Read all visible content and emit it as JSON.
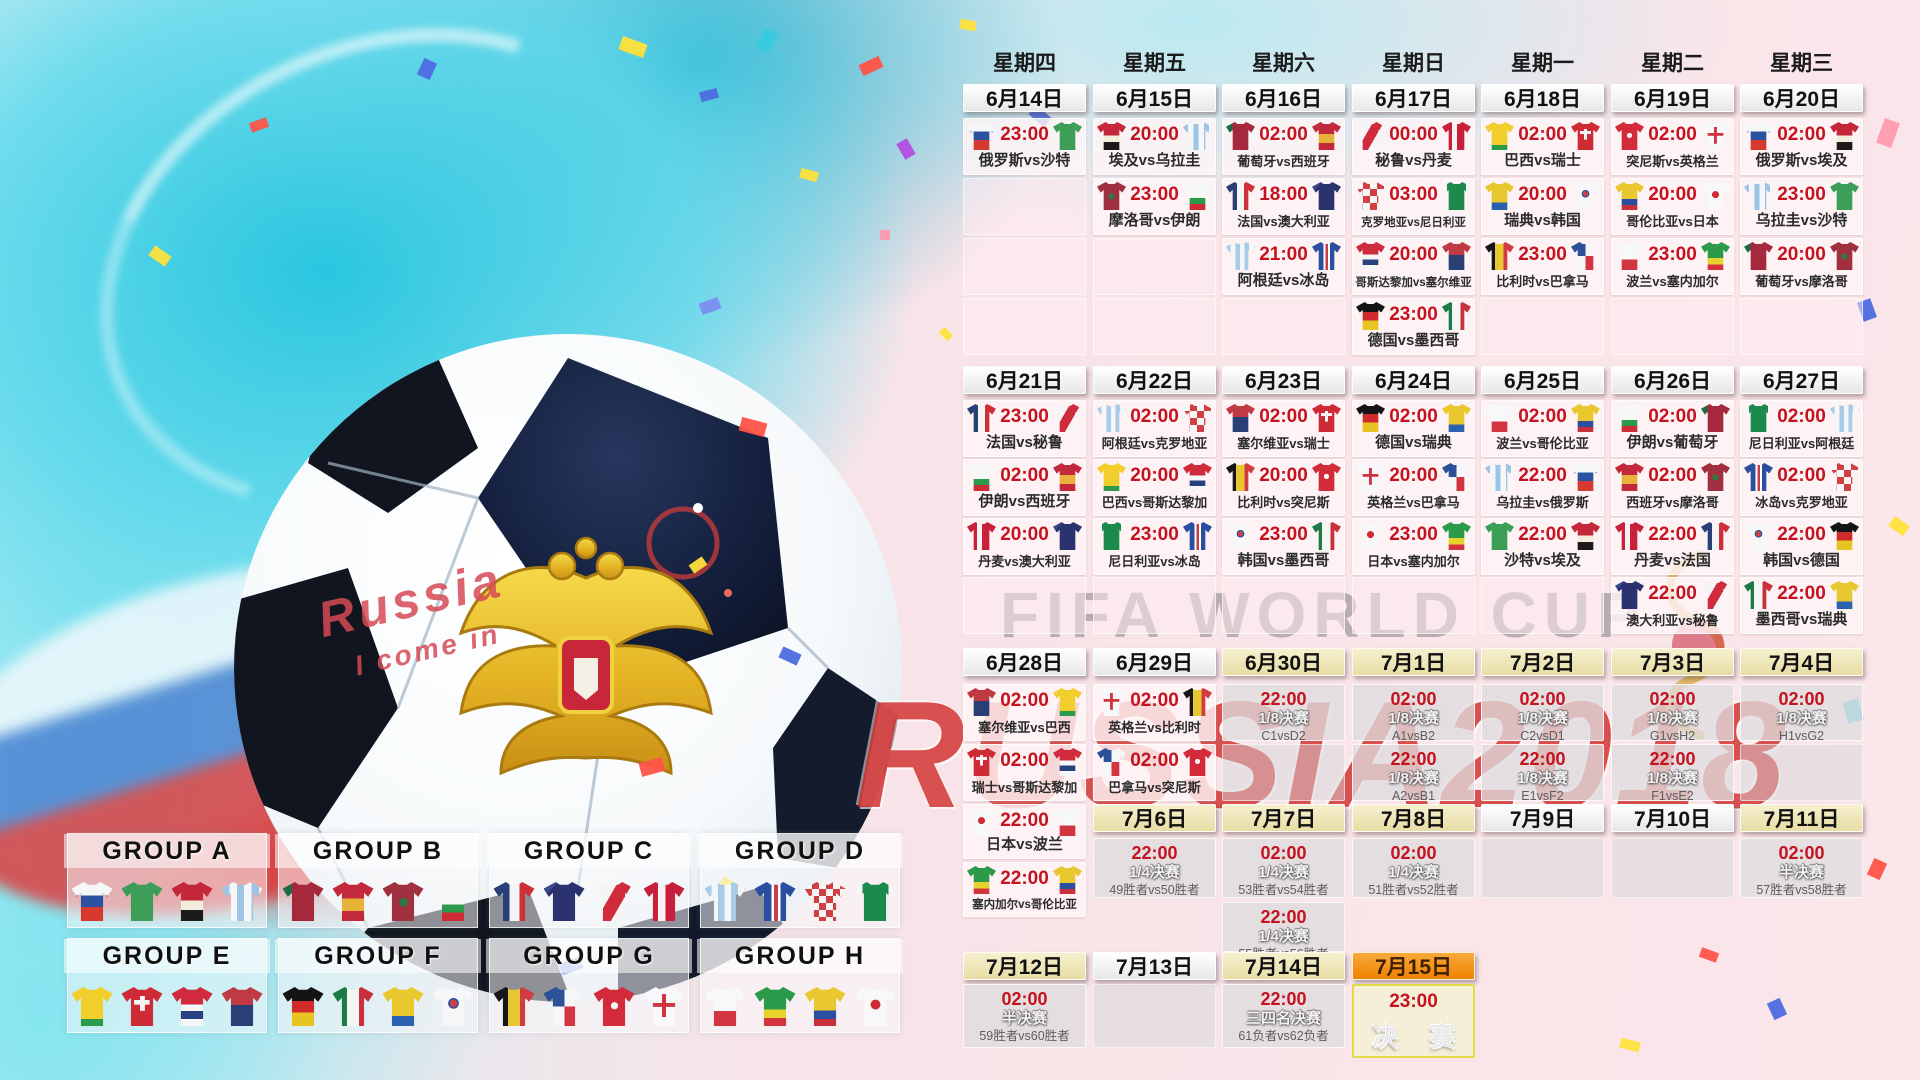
{
  "art": {
    "watermark": "FIFA WORLD CUP",
    "russia_watermark": "RUSSIA2018",
    "ball_script_line1": "Russia",
    "ball_script_line2": "I come in"
  },
  "team_colors": {
    "俄罗斯": "linear-gradient(180deg,#f5f6f8 0 34%,#2a52a0 34% 64%,#d6392f 64%)",
    "沙特": "linear-gradient(180deg,#3d9e57 0 100%)",
    "埃及": "linear-gradient(180deg,#c5273a 0 48%,#f2ecdc 48% 72%,#1d1a1c 72%)",
    "乌拉圭": "repeating-linear-gradient(90deg,#9cc4e4 0 18%,#f4f6f8 18% 36%)",
    "葡萄牙": "linear-gradient(90deg,#1c6b44 0 22%,#a5283c 22%)",
    "西班牙": "linear-gradient(180deg,#c2293c 0 42%,#e8b23a 42% 75%,#c2293c 75%)",
    "摩洛哥": "radial-gradient(circle at 50% 52%,#2c7a43 0 14%,#a03040 15%)",
    "伊朗": "linear-gradient(180deg,#f6f8f6 0 58%,#2c9a4b 58% 78%,#cf2b36 78%)",
    "法国": "linear-gradient(90deg,#2b3f77 0 38%,#f2f4f6 38% 62%,#cf3038 62%)",
    "澳大利亚": "linear-gradient(135deg,#3a4a8c 0 18%,#2b3270 18% 100%)",
    "秘鲁": "linear-gradient(120deg,#f6f4f4 0 38%,#cf2b3d 38% 62%,#f6f4f4 62%)",
    "丹麦": "linear-gradient(90deg,#c8203b 0 34%,#f4f2f2 34% 52%,#c8203b 52%)",
    "阿根廷": "repeating-linear-gradient(90deg,#a8cbe8 0 16%,#f4f6f8 16% 32%)",
    "冰岛": "linear-gradient(90deg,#2b4fa0 0 40%,#ffffff 40% 46%,#c93c46 46% 56%,#ffffff 56% 62%,#2b4fa0 62%)",
    "克罗地亚": "repeating-conic-gradient(#d23f42 0 25%,#f6f6f6 25% 50%) 0 0/14px 14px",
    "尼日利亚": "linear-gradient(90deg,#f4f6f4 0 18%,#1c8a4c 18% 82%,#f4f6f4 82%)",
    "巴西": "linear-gradient(180deg,#f2ce2c 0 82%,#2c9a4b 82%)",
    "瑞士": "linear-gradient(#f4f4f4,#f4f4f4) 50% 38%/38% 12% no-repeat,linear-gradient(#f4f4f4,#f4f4f4) 50% 38%/12% 38% no-repeat,#cf2b36",
    "哥斯达黎加": "linear-gradient(180deg,#cf2b3d 0 45%,#f4f6f8 45% 62%,#27427c 62% 82%,#f4f6f8 82%)",
    "塞尔维亚": "linear-gradient(180deg,#c03a44 0 46%,#2b3f77 46%)",
    "德国": "linear-gradient(180deg,#141414 0 36%,#cf2b2b 36% 66%,#e8c422 66%)",
    "墨西哥": "linear-gradient(90deg,#1c7a46 0 34%,#f4f6f4 34% 64%,#c8303c 64%)",
    "瑞典": "linear-gradient(180deg,#e8c82e 0 74%,#2b62b0 74%)",
    "韩国": "radial-gradient(circle at 50% 42%,#d04048 0 12%,#2b52a0 12% 17%,#f7f7f7 18%)",
    "比利时": "linear-gradient(90deg,#16161a 0 34%,#e8c832 34% 64%,#d23b40 64%)",
    "巴拿马": "conic-gradient(from 0deg at 50% 50%,#f6f6f8 0 25%,#d23540 25% 50%,#f6f6f8 50% 75%,#2b5298 75%)",
    "突尼斯": "radial-gradient(circle at 50% 48%,#f6f6f6 0 12%,#d42b3a 13%)",
    "英格兰": "linear-gradient(#d23540,#d23540) 50% 45%/100% 10% no-repeat,linear-gradient(#d23540,#d23540) 50% 45%/10% 60% no-repeat,#f7f8fa",
    "波兰": "linear-gradient(180deg,#f7f8fa 0 62%,#d23540 62%)",
    "塞内加尔": "linear-gradient(180deg,#2c9a4b 0 58%,#e8d22e 58% 80%,#d23540 80%)",
    "哥伦比亚": "linear-gradient(180deg,#e8c82e 0 60%,#2b4fa0 60% 82%,#c8303c 82%)",
    "日本": "radial-gradient(circle at 50% 45%,#cf2b36 0 16%,#f8f8f8 17%)"
  },
  "calendar": {
    "weekdays": [
      "星期四",
      "星期五",
      "星期六",
      "星期日",
      "星期一",
      "星期二",
      "星期三"
    ],
    "weeks": [
      {
        "dates": [
          {
            "label": "6月14日",
            "tone": "white"
          },
          {
            "label": "6月15日",
            "tone": "white"
          },
          {
            "label": "6月16日",
            "tone": "white"
          },
          {
            "label": "6月17日",
            "tone": "white"
          },
          {
            "label": "6月18日",
            "tone": "white"
          },
          {
            "label": "6月19日",
            "tone": "white"
          },
          {
            "label": "6月20日",
            "tone": "white"
          }
        ],
        "rows": [
          [
            {
              "time": "23:00",
              "home": "俄罗斯",
              "away": "沙特"
            },
            {
              "time": "20:00",
              "home": "埃及",
              "away": "乌拉圭"
            },
            {
              "time": "02:00",
              "home": "葡萄牙",
              "away": "西班牙"
            },
            {
              "time": "00:00",
              "home": "秘鲁",
              "away": "丹麦"
            },
            {
              "time": "02:00",
              "home": "巴西",
              "away": "瑞士"
            },
            {
              "time": "02:00",
              "home": "突尼斯",
              "away": "英格兰"
            },
            {
              "time": "02:00",
              "home": "俄罗斯",
              "away": "埃及"
            }
          ],
          [
            "E",
            {
              "time": "23:00",
              "home": "摩洛哥",
              "away": "伊朗"
            },
            {
              "time": "18:00",
              "home": "法国",
              "away": "澳大利亚"
            },
            {
              "time": "03:00",
              "home": "克罗地亚",
              "away": "尼日利亚"
            },
            {
              "time": "20:00",
              "home": "瑞典",
              "away": "韩国"
            },
            {
              "time": "20:00",
              "home": "哥伦比亚",
              "away": "日本"
            },
            {
              "time": "23:00",
              "home": "乌拉圭",
              "away": "沙特"
            }
          ],
          [
            "E",
            "E",
            {
              "time": "21:00",
              "home": "阿根廷",
              "away": "冰岛"
            },
            {
              "time": "20:00",
              "home": "哥斯达黎加",
              "away": "塞尔维亚"
            },
            {
              "time": "23:00",
              "home": "比利时",
              "away": "巴拿马"
            },
            {
              "time": "23:00",
              "home": "波兰",
              "away": "塞内加尔"
            },
            {
              "time": "20:00",
              "home": "葡萄牙",
              "away": "摩洛哥"
            }
          ],
          [
            "E",
            "E",
            "E",
            {
              "time": "23:00",
              "home": "德国",
              "away": "墨西哥"
            },
            "E",
            "E",
            "E"
          ]
        ]
      },
      {
        "dates": [
          {
            "label": "6月21日",
            "tone": "white"
          },
          {
            "label": "6月22日",
            "tone": "white"
          },
          {
            "label": "6月23日",
            "tone": "white"
          },
          {
            "label": "6月24日",
            "tone": "white"
          },
          {
            "label": "6月25日",
            "tone": "white"
          },
          {
            "label": "6月26日",
            "tone": "white"
          },
          {
            "label": "6月27日",
            "tone": "white"
          }
        ],
        "rows": [
          [
            {
              "time": "23:00",
              "home": "法国",
              "away": "秘鲁"
            },
            {
              "time": "02:00",
              "home": "阿根廷",
              "away": "克罗地亚"
            },
            {
              "time": "02:00",
              "home": "塞尔维亚",
              "away": "瑞士"
            },
            {
              "time": "02:00",
              "home": "德国",
              "away": "瑞典"
            },
            {
              "time": "02:00",
              "home": "波兰",
              "away": "哥伦比亚"
            },
            {
              "time": "02:00",
              "home": "伊朗",
              "away": "葡萄牙"
            },
            {
              "time": "02:00",
              "home": "尼日利亚",
              "away": "阿根廷"
            }
          ],
          [
            {
              "time": "02:00",
              "home": "伊朗",
              "away": "西班牙"
            },
            {
              "time": "20:00",
              "home": "巴西",
              "away": "哥斯达黎加"
            },
            {
              "time": "20:00",
              "home": "比利时",
              "away": "突尼斯"
            },
            {
              "time": "20:00",
              "home": "英格兰",
              "away": "巴拿马"
            },
            {
              "time": "22:00",
              "home": "乌拉圭",
              "away": "俄罗斯"
            },
            {
              "time": "02:00",
              "home": "西班牙",
              "away": "摩洛哥"
            },
            {
              "time": "02:00",
              "home": "冰岛",
              "away": "克罗地亚"
            }
          ],
          [
            {
              "time": "20:00",
              "home": "丹麦",
              "away": "澳大利亚"
            },
            {
              "time": "23:00",
              "home": "尼日利亚",
              "away": "冰岛"
            },
            {
              "time": "23:00",
              "home": "韩国",
              "away": "墨西哥"
            },
            {
              "time": "23:00",
              "home": "日本",
              "away": "塞内加尔"
            },
            {
              "time": "22:00",
              "home": "沙特",
              "away": "埃及"
            },
            {
              "time": "22:00",
              "home": "丹麦",
              "away": "法国"
            },
            {
              "time": "22:00",
              "home": "韩国",
              "away": "德国"
            }
          ],
          [
            "E",
            "E",
            "E",
            "E",
            "E",
            {
              "time": "22:00",
              "home": "澳大利亚",
              "away": "秘鲁"
            },
            {
              "time": "22:00",
              "home": "墨西哥",
              "away": "瑞典"
            }
          ]
        ]
      },
      {
        "dates": [
          {
            "label": "6月28日",
            "tone": "white"
          },
          {
            "label": "6月29日",
            "tone": "white"
          },
          {
            "label": "6月30日",
            "tone": "cream"
          },
          {
            "label": "7月1日",
            "tone": "cream"
          },
          {
            "label": "7月2日",
            "tone": "cream"
          },
          {
            "label": "7月3日",
            "tone": "cream"
          },
          {
            "label": "7月4日",
            "tone": "cream"
          }
        ],
        "rows": [
          [
            {
              "time": "02:00",
              "home": "塞尔维亚",
              "away": "巴西"
            },
            {
              "time": "02:00",
              "home": "英格兰",
              "away": "比利时"
            },
            {
              "time": "22:00",
              "stage": "1/8决赛",
              "pair": "C1vsD2"
            },
            {
              "time": "02:00",
              "stage": "1/8决赛",
              "pair": "A1vsB2"
            },
            {
              "time": "02:00",
              "stage": "1/8决赛",
              "pair": "C2vsD1"
            },
            {
              "time": "02:00",
              "stage": "1/8决赛",
              "pair": "G1vsH2"
            },
            {
              "time": "02:00",
              "stage": "1/8决赛",
              "pair": "H1vsG2"
            }
          ],
          [
            {
              "time": "02:00",
              "home": "瑞士",
              "away": "哥斯达黎加"
            },
            {
              "time": "02:00",
              "home": "巴拿马",
              "away": "突尼斯"
            },
            "G",
            {
              "time": "22:00",
              "stage": "1/8决赛",
              "pair": "A2vsB1"
            },
            {
              "time": "22:00",
              "stage": "1/8决赛",
              "pair": "E1vsF2"
            },
            {
              "time": "22:00",
              "stage": "1/8决赛",
              "pair": "F1vsE2"
            },
            "G"
          ]
        ],
        "extra_match_row3": {
          "time": "22:00",
          "home": "日本",
          "away": "波兰"
        },
        "dates2": [
          {
            "label": "7月6日",
            "tone": "cream"
          },
          {
            "label": "7月7日",
            "tone": "cream"
          },
          {
            "label": "7月8日",
            "tone": "cream"
          },
          {
            "label": "7月9日",
            "tone": "white"
          },
          {
            "label": "7月10日",
            "tone": "white"
          },
          {
            "label": "7月11日",
            "tone": "cream"
          }
        ],
        "extra_match_row4": {
          "time": "22:00",
          "home": "塞内加尔",
          "away": "哥伦比亚"
        },
        "ko_row4": [
          {
            "time": "22:00",
            "stage": "1/4决赛",
            "pair": "49胜者vs50胜者"
          },
          {
            "time": "02:00",
            "stage": "1/4决赛",
            "pair": "53胜者vs54胜者"
          },
          {
            "time": "02:00",
            "stage": "1/4决赛",
            "pair": "51胜者vs52胜者"
          },
          "G",
          "G",
          {
            "time": "02:00",
            "stage": "半决赛",
            "pair": "57胜者vs58胜者"
          }
        ],
        "ko_row5_col2": {
          "time": "22:00",
          "stage": "1/4决赛",
          "pair": "55胜者vs56胜者"
        }
      },
      {
        "dates": [
          {
            "label": "7月12日",
            "tone": "cream"
          },
          {
            "label": "7月13日",
            "tone": "white"
          },
          {
            "label": "7月14日",
            "tone": "cream"
          },
          {
            "label": "7月15日",
            "tone": "orange"
          }
        ],
        "final_row": [
          {
            "time": "02:00",
            "stage": "半决赛",
            "pair": "59胜者vs60胜者"
          },
          "G",
          {
            "time": "22:00",
            "stage": "三四名决赛",
            "pair": "61负者vs62负者"
          },
          {
            "time": "23:00",
            "final_label": "决 赛"
          }
        ]
      }
    ]
  },
  "groups": [
    {
      "name": "GROUP A",
      "teams": [
        "俄罗斯",
        "沙特",
        "埃及",
        "乌拉圭"
      ]
    },
    {
      "name": "GROUP B",
      "teams": [
        "葡萄牙",
        "西班牙",
        "摩洛哥",
        "伊朗"
      ]
    },
    {
      "name": "GROUP C",
      "teams": [
        "法国",
        "澳大利亚",
        "秘鲁",
        "丹麦"
      ]
    },
    {
      "name": "GROUP D",
      "teams": [
        "阿根廷",
        "冰岛",
        "克罗地亚",
        "尼日利亚"
      ]
    },
    {
      "name": "GROUP E",
      "teams": [
        "巴西",
        "瑞士",
        "哥斯达黎加",
        "塞尔维亚"
      ]
    },
    {
      "name": "GROUP F",
      "teams": [
        "德国",
        "墨西哥",
        "瑞典",
        "韩国"
      ]
    },
    {
      "name": "GROUP G",
      "teams": [
        "比利时",
        "巴拿马",
        "突尼斯",
        "英格兰"
      ]
    },
    {
      "name": "GROUP H",
      "teams": [
        "波兰",
        "塞内加尔",
        "哥伦比亚",
        "日本"
      ]
    }
  ]
}
